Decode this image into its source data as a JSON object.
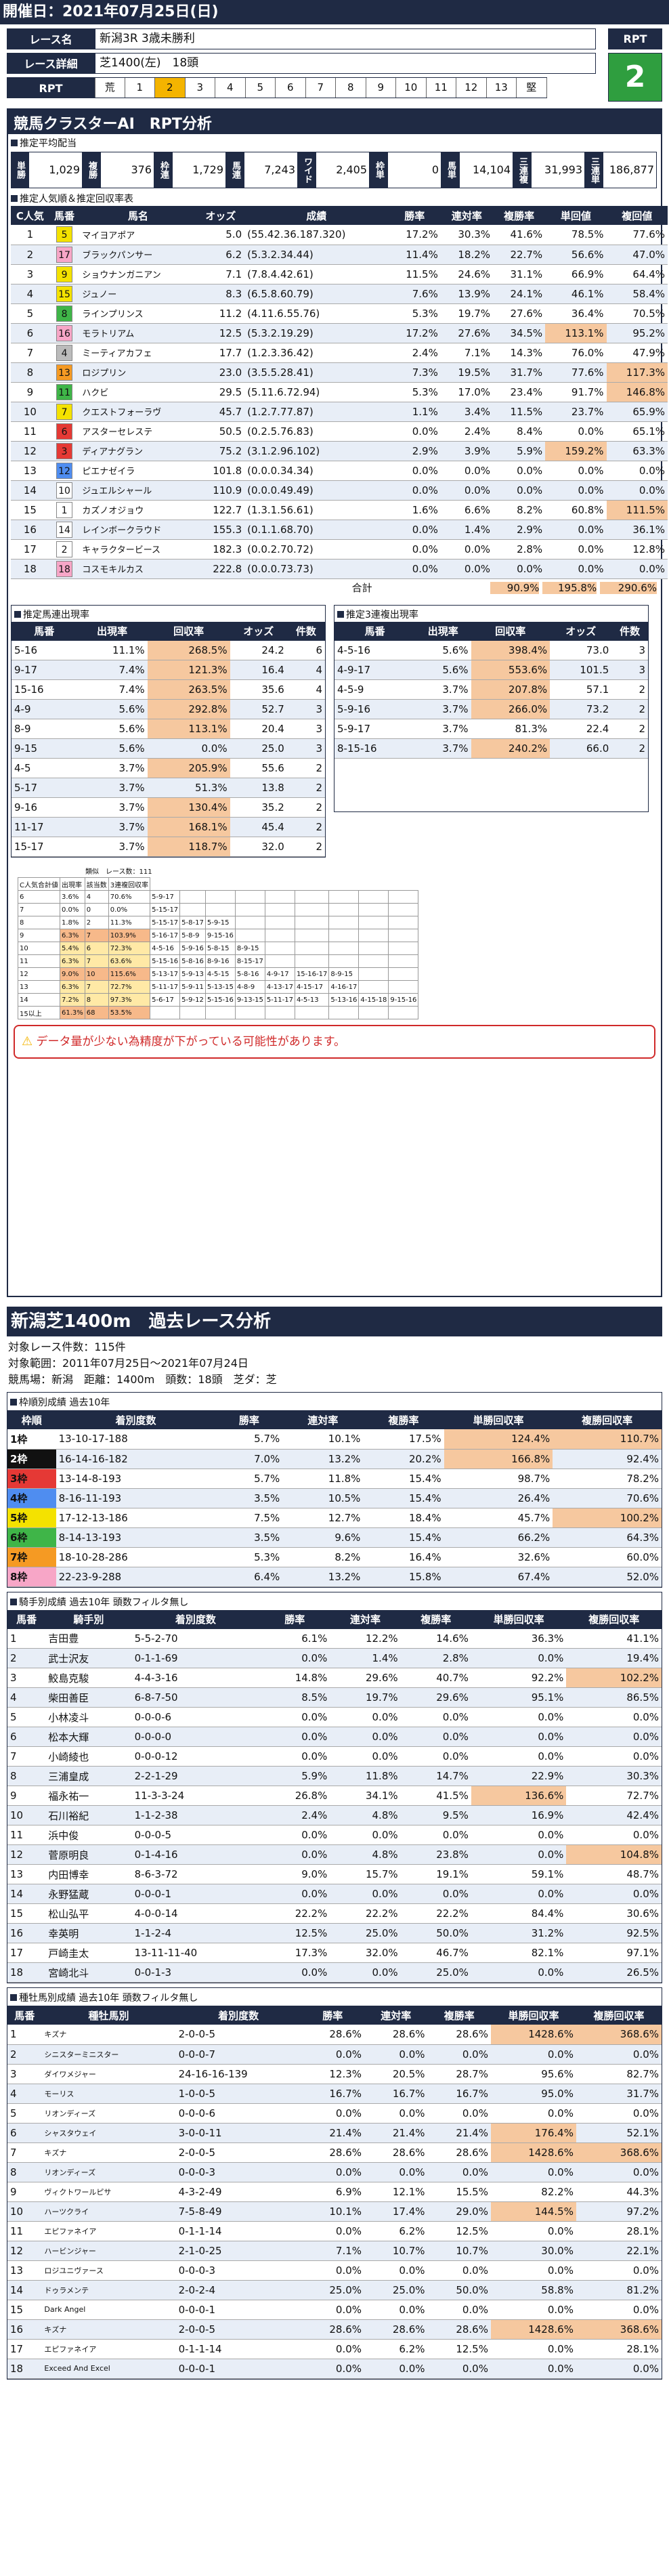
{
  "header": {
    "date": "開催日：2021年07月25日(日)"
  },
  "race": {
    "name_label": "レース名",
    "name": "新潟3R 3歳未勝利",
    "detail_label": "レース詳細",
    "detail": "芝1400(左)　18頭",
    "rpt_label": "RPT",
    "rpt_cells": [
      "荒",
      "1",
      "2",
      "3",
      "4",
      "5",
      "6",
      "7",
      "8",
      "9",
      "10",
      "11",
      "12",
      "13",
      "堅"
    ],
    "rpt_selected": "2",
    "rpt_box_label": "RPT",
    "rpt_value": "2"
  },
  "ai": {
    "title": "競馬クラスターAI　RPT分析",
    "payout_title": "推定平均配当",
    "payouts": [
      {
        "label": "単勝",
        "value": "1,029"
      },
      {
        "label": "複勝",
        "value": "376"
      },
      {
        "label": "枠連",
        "value": "1,729"
      },
      {
        "label": "馬連",
        "value": "7,243"
      },
      {
        "label": "ワイド",
        "value": "2,405"
      },
      {
        "label": "枠単",
        "value": "0"
      },
      {
        "label": "馬単",
        "value": "14,104"
      },
      {
        "label": "三連複",
        "value": "31,993"
      },
      {
        "label": "三連単",
        "value": "186,877"
      }
    ],
    "pop_title": "推定人気順＆推定回収率表",
    "pop_headers": [
      "C人気",
      "馬番",
      "馬名",
      "オッズ",
      "成績",
      "勝率",
      "連対率",
      "複勝率",
      "単回値",
      "複回値"
    ],
    "pop_rows": [
      [
        "1",
        "5",
        "マイヨアポア",
        "5.0",
        "(55.42.36.187.320)",
        "17.2%",
        "30.3%",
        "41.6%",
        "78.5%",
        "77.6%"
      ],
      [
        "2",
        "17",
        "ブラックパンサー",
        "6.2",
        "(5.3.2.34.44)",
        "11.4%",
        "18.2%",
        "22.7%",
        "56.6%",
        "47.0%"
      ],
      [
        "3",
        "9",
        "ショウナンガニアン",
        "7.1",
        "(7.8.4.42.61)",
        "11.5%",
        "24.6%",
        "31.1%",
        "66.9%",
        "64.4%"
      ],
      [
        "4",
        "15",
        "ジュノー",
        "8.3",
        "(6.5.8.60.79)",
        "7.6%",
        "13.9%",
        "24.1%",
        "46.1%",
        "58.4%"
      ],
      [
        "5",
        "8",
        "ラインプリンス",
        "11.2",
        "(4.11.6.55.76)",
        "5.3%",
        "19.7%",
        "27.6%",
        "36.4%",
        "70.5%"
      ],
      [
        "6",
        "16",
        "モラトリアム",
        "12.5",
        "(5.3.2.19.29)",
        "17.2%",
        "27.6%",
        "34.5%",
        "113.1%",
        "95.2%"
      ],
      [
        "7",
        "4",
        "ミーティアカフェ",
        "17.7",
        "(1.2.3.36.42)",
        "2.4%",
        "7.1%",
        "14.3%",
        "76.0%",
        "47.9%"
      ],
      [
        "8",
        "13",
        "ロジプリン",
        "23.0",
        "(3.5.5.28.41)",
        "7.3%",
        "19.5%",
        "31.7%",
        "77.6%",
        "117.3%"
      ],
      [
        "9",
        "11",
        "ハクビ",
        "29.5",
        "(5.11.6.72.94)",
        "5.3%",
        "17.0%",
        "23.4%",
        "91.7%",
        "146.8%"
      ],
      [
        "10",
        "7",
        "クエストフォーラヴ",
        "45.7",
        "(1.2.7.77.87)",
        "1.1%",
        "3.4%",
        "11.5%",
        "23.7%",
        "65.9%"
      ],
      [
        "11",
        "6",
        "アスターセレステ",
        "50.5",
        "(0.2.5.76.83)",
        "0.0%",
        "2.4%",
        "8.4%",
        "0.0%",
        "65.1%"
      ],
      [
        "12",
        "3",
        "ディアナグラン",
        "75.2",
        "(3.1.2.96.102)",
        "2.9%",
        "3.9%",
        "5.9%",
        "159.2%",
        "63.3%"
      ],
      [
        "13",
        "12",
        "ピエナゼイラ",
        "101.8",
        "(0.0.0.34.34)",
        "0.0%",
        "0.0%",
        "0.0%",
        "0.0%",
        "0.0%"
      ],
      [
        "14",
        "10",
        "ジュエルシャール",
        "110.9",
        "(0.0.0.49.49)",
        "0.0%",
        "0.0%",
        "0.0%",
        "0.0%",
        "0.0%"
      ],
      [
        "15",
        "1",
        "カズノオジョウ",
        "122.7",
        "(1.3.1.56.61)",
        "1.6%",
        "6.6%",
        "8.2%",
        "60.8%",
        "111.5%"
      ],
      [
        "16",
        "14",
        "レインボークラウド",
        "155.3",
        "(0.1.1.68.70)",
        "0.0%",
        "1.4%",
        "2.9%",
        "0.0%",
        "36.1%"
      ],
      [
        "17",
        "2",
        "キャラクタービース",
        "182.3",
        "(0.0.2.70.72)",
        "0.0%",
        "0.0%",
        "2.8%",
        "0.0%",
        "12.8%"
      ],
      [
        "18",
        "18",
        "コスモキルカス",
        "222.8",
        "(0.0.0.73.73)",
        "0.0%",
        "0.0%",
        "0.0%",
        "0.0%",
        "0.0%"
      ]
    ],
    "pop_total": {
      "label": "合計",
      "v1": "90.9%",
      "v2": "195.8%",
      "v3": "290.6%"
    },
    "umaren_title": "推定馬連出現率",
    "umaren_headers": [
      "馬番",
      "出現率",
      "回収率",
      "オッズ",
      "件数"
    ],
    "umaren_rows": [
      [
        "5-16",
        "11.1%",
        "268.5%",
        "24.2",
        "6"
      ],
      [
        "9-17",
        "7.4%",
        "121.3%",
        "16.4",
        "4"
      ],
      [
        "15-16",
        "7.4%",
        "263.5%",
        "35.6",
        "4"
      ],
      [
        "4-9",
        "5.6%",
        "292.8%",
        "52.7",
        "3"
      ],
      [
        "8-9",
        "5.6%",
        "113.1%",
        "20.4",
        "3"
      ],
      [
        "9-15",
        "5.6%",
        "0.0%",
        "25.0",
        "3"
      ],
      [
        "4-5",
        "3.7%",
        "205.9%",
        "55.6",
        "2"
      ],
      [
        "5-17",
        "3.7%",
        "51.3%",
        "13.8",
        "2"
      ],
      [
        "9-16",
        "3.7%",
        "130.4%",
        "35.2",
        "2"
      ],
      [
        "11-17",
        "3.7%",
        "168.1%",
        "45.4",
        "2"
      ],
      [
        "15-17",
        "3.7%",
        "118.7%",
        "32.0",
        "2"
      ]
    ],
    "sanren_title": "推定3連複出現率",
    "sanren_headers": [
      "馬番",
      "出現率",
      "回収率",
      "オッズ",
      "件数"
    ],
    "sanren_rows": [
      [
        "4-5-16",
        "5.6%",
        "398.4%",
        "73.0",
        "3"
      ],
      [
        "4-9-17",
        "5.6%",
        "553.6%",
        "101.5",
        "3"
      ],
      [
        "4-5-9",
        "3.7%",
        "207.8%",
        "57.1",
        "2"
      ],
      [
        "5-9-16",
        "3.7%",
        "266.0%",
        "73.2",
        "2"
      ],
      [
        "5-9-17",
        "3.7%",
        "81.3%",
        "22.4",
        "2"
      ],
      [
        "8-15-16",
        "3.7%",
        "240.2%",
        "66.0",
        "2"
      ]
    ],
    "mini_caption": "類似　レース数：111",
    "mini_headers": [
      "C人気合計値",
      "出現率",
      "該当数",
      "3連複回収率"
    ],
    "mini_rows": [
      [
        "6",
        "3.6%",
        "4",
        "70.6%",
        "5-9-17",
        "",
        "",
        "",
        "",
        "",
        "",
        "",
        ""
      ],
      [
        "7",
        "0.0%",
        "0",
        "0.0%",
        "5-15-17",
        "",
        "",
        "",
        "",
        "",
        "",
        "",
        ""
      ],
      [
        "8",
        "1.8%",
        "2",
        "11.3%",
        "5-15-17",
        "5-8-17",
        "5-9-15",
        "",
        "",
        "",
        "",
        "",
        ""
      ],
      [
        "9",
        "6.3%",
        "7",
        "103.9%",
        "5-16-17",
        "5-8-9",
        "9-15-16",
        "",
        "",
        "",
        "",
        "",
        ""
      ],
      [
        "10",
        "5.4%",
        "6",
        "72.3%",
        "4-5-16",
        "5-9-16",
        "5-8-15",
        "8-9-15",
        "",
        "",
        "",
        "",
        ""
      ],
      [
        "11",
        "6.3%",
        "7",
        "63.6%",
        "5-15-16",
        "5-8-16",
        "8-9-16",
        "8-15-17",
        "",
        "",
        "",
        "",
        ""
      ],
      [
        "12",
        "9.0%",
        "10",
        "115.6%",
        "5-13-17",
        "5-9-13",
        "4-5-15",
        "5-8-16",
        "4-9-17",
        "15-16-17",
        "8-9-15",
        "",
        ""
      ],
      [
        "13",
        "6.3%",
        "7",
        "72.7%",
        "5-11-17",
        "5-9-11",
        "5-13-15",
        "4-8-9",
        "4-13-17",
        "4-15-17",
        "4-16-17",
        "",
        ""
      ],
      [
        "14",
        "7.2%",
        "8",
        "97.3%",
        "5-6-17",
        "5-9-12",
        "5-15-16",
        "9-13-15",
        "5-11-17",
        "4-5-13",
        "5-13-16",
        "4-15-18",
        "9-15-16"
      ],
      [
        "15以上",
        "61.3%",
        "68",
        "53.5%",
        "",
        "",
        "",
        "",
        "",
        "",
        "",
        "",
        ""
      ]
    ],
    "warning": "データ量が少ない為精度が下がっている可能性があります。"
  },
  "analysis": {
    "title": "新潟芝1400m　過去レース分析",
    "info": [
      "対象レース件数：115件",
      "対象範囲：2011年07月25日～2021年07月24日",
      "競馬場：新潟　距離：1400m　頭数：18頭　芝ダ：芝"
    ],
    "waku_title": "枠順別成績 過去10年",
    "waku_headers": [
      "枠順",
      "着別度数",
      "勝率",
      "連対率",
      "複勝率",
      "単勝回収率",
      "複勝回収率"
    ],
    "waku_rows": [
      [
        "1枠",
        "13-10-17-188",
        "5.7%",
        "10.1%",
        "17.5%",
        "124.4%",
        "110.7%"
      ],
      [
        "2枠",
        "16-14-16-182",
        "7.0%",
        "13.2%",
        "20.2%",
        "166.8%",
        "92.4%"
      ],
      [
        "3枠",
        "13-14-8-193",
        "5.7%",
        "11.8%",
        "15.4%",
        "98.7%",
        "78.2%"
      ],
      [
        "4枠",
        "8-16-11-193",
        "3.5%",
        "10.5%",
        "15.4%",
        "26.4%",
        "70.6%"
      ],
      [
        "5枠",
        "17-12-13-186",
        "7.5%",
        "12.7%",
        "18.4%",
        "45.7%",
        "100.2%"
      ],
      [
        "6枠",
        "8-14-13-193",
        "3.5%",
        "9.6%",
        "15.4%",
        "66.2%",
        "64.3%"
      ],
      [
        "7枠",
        "18-10-28-286",
        "5.3%",
        "8.2%",
        "16.4%",
        "32.6%",
        "60.0%"
      ],
      [
        "8枠",
        "22-23-9-288",
        "6.4%",
        "13.2%",
        "15.8%",
        "67.4%",
        "52.0%"
      ]
    ],
    "waku_colors": [
      "#ffffff",
      "#111111",
      "#e53935",
      "#4f8df0",
      "#f4e200",
      "#3fb548",
      "#f59a23",
      "#f7a6c7"
    ],
    "jockey_title": "騎手別成績 過去10年 頭数フィルタ無し",
    "jockey_headers": [
      "馬番",
      "騎手別",
      "着別度数",
      "勝率",
      "連対率",
      "複勝率",
      "単勝回収率",
      "複勝回収率"
    ],
    "jockey_rows": [
      [
        "1",
        "吉田豊",
        "5-5-2-70",
        "6.1%",
        "12.2%",
        "14.6%",
        "36.3%",
        "41.1%"
      ],
      [
        "2",
        "武士沢友",
        "0-1-1-69",
        "0.0%",
        "1.4%",
        "2.8%",
        "0.0%",
        "19.4%"
      ],
      [
        "3",
        "鮫島克駿",
        "4-4-3-16",
        "14.8%",
        "29.6%",
        "40.7%",
        "92.2%",
        "102.2%"
      ],
      [
        "4",
        "柴田善臣",
        "6-8-7-50",
        "8.5%",
        "19.7%",
        "29.6%",
        "95.1%",
        "86.5%"
      ],
      [
        "5",
        "小林凌斗",
        "0-0-0-6",
        "0.0%",
        "0.0%",
        "0.0%",
        "0.0%",
        "0.0%"
      ],
      [
        "6",
        "松本大輝",
        "0-0-0-0",
        "0.0%",
        "0.0%",
        "0.0%",
        "0.0%",
        "0.0%"
      ],
      [
        "7",
        "小崎綾也",
        "0-0-0-12",
        "0.0%",
        "0.0%",
        "0.0%",
        "0.0%",
        "0.0%"
      ],
      [
        "8",
        "三浦皇成",
        "2-2-1-29",
        "5.9%",
        "11.8%",
        "14.7%",
        "22.9%",
        "30.3%"
      ],
      [
        "9",
        "福永祐一",
        "11-3-3-24",
        "26.8%",
        "34.1%",
        "41.5%",
        "136.6%",
        "72.7%"
      ],
      [
        "10",
        "石川裕紀",
        "1-1-2-38",
        "2.4%",
        "4.8%",
        "9.5%",
        "16.9%",
        "42.4%"
      ],
      [
        "11",
        "浜中俊",
        "0-0-0-5",
        "0.0%",
        "0.0%",
        "0.0%",
        "0.0%",
        "0.0%"
      ],
      [
        "12",
        "菅原明良",
        "0-1-4-16",
        "0.0%",
        "4.8%",
        "23.8%",
        "0.0%",
        "104.8%"
      ],
      [
        "13",
        "内田博幸",
        "8-6-3-72",
        "9.0%",
        "15.7%",
        "19.1%",
        "59.1%",
        "48.7%"
      ],
      [
        "14",
        "永野猛蔵",
        "0-0-0-1",
        "0.0%",
        "0.0%",
        "0.0%",
        "0.0%",
        "0.0%"
      ],
      [
        "15",
        "松山弘平",
        "4-0-0-14",
        "22.2%",
        "22.2%",
        "22.2%",
        "84.4%",
        "30.6%"
      ],
      [
        "16",
        "幸英明",
        "1-1-2-4",
        "12.5%",
        "25.0%",
        "50.0%",
        "31.2%",
        "92.5%"
      ],
      [
        "17",
        "戸崎圭太",
        "13-11-11-40",
        "17.3%",
        "32.0%",
        "46.7%",
        "82.1%",
        "97.1%"
      ],
      [
        "18",
        "宮崎北斗",
        "0-0-1-3",
        "0.0%",
        "0.0%",
        "25.0%",
        "0.0%",
        "26.5%"
      ]
    ],
    "sire_title": "種牡馬別成績 過去10年 頭数フィルタ無し",
    "sire_headers": [
      "馬番",
      "種牡馬別",
      "着別度数",
      "勝率",
      "連対率",
      "複勝率",
      "単勝回収率",
      "複勝回収率"
    ],
    "sire_rows": [
      [
        "1",
        "キズナ",
        "2-0-0-5",
        "28.6%",
        "28.6%",
        "28.6%",
        "1428.6%",
        "368.6%"
      ],
      [
        "2",
        "シニスターミニスター",
        "0-0-0-7",
        "0.0%",
        "0.0%",
        "0.0%",
        "0.0%",
        "0.0%"
      ],
      [
        "3",
        "ダイワメジャー",
        "24-16-16-139",
        "12.3%",
        "20.5%",
        "28.7%",
        "95.6%",
        "82.7%"
      ],
      [
        "4",
        "モーリス",
        "1-0-0-5",
        "16.7%",
        "16.7%",
        "16.7%",
        "95.0%",
        "31.7%"
      ],
      [
        "5",
        "リオンディーズ",
        "0-0-0-6",
        "0.0%",
        "0.0%",
        "0.0%",
        "0.0%",
        "0.0%"
      ],
      [
        "6",
        "シャスタウェイ",
        "3-0-0-11",
        "21.4%",
        "21.4%",
        "21.4%",
        "176.4%",
        "52.1%"
      ],
      [
        "7",
        "キズナ",
        "2-0-0-5",
        "28.6%",
        "28.6%",
        "28.6%",
        "1428.6%",
        "368.6%"
      ],
      [
        "8",
        "リオンディーズ",
        "0-0-0-3",
        "0.0%",
        "0.0%",
        "0.0%",
        "0.0%",
        "0.0%"
      ],
      [
        "9",
        "ヴィクトワールピサ",
        "4-3-2-49",
        "6.9%",
        "12.1%",
        "15.5%",
        "82.2%",
        "44.3%"
      ],
      [
        "10",
        "ハーツクライ",
        "7-5-8-49",
        "10.1%",
        "17.4%",
        "29.0%",
        "144.5%",
        "97.2%"
      ],
      [
        "11",
        "エピファネイア",
        "0-1-1-14",
        "0.0%",
        "6.2%",
        "12.5%",
        "0.0%",
        "28.1%"
      ],
      [
        "12",
        "ハービンジャー",
        "2-1-0-25",
        "7.1%",
        "10.7%",
        "10.7%",
        "30.0%",
        "22.1%"
      ],
      [
        "13",
        "ロジユニヴァース",
        "0-0-0-3",
        "0.0%",
        "0.0%",
        "0.0%",
        "0.0%",
        "0.0%"
      ],
      [
        "14",
        "ドゥラメンテ",
        "2-0-2-4",
        "25.0%",
        "25.0%",
        "50.0%",
        "58.8%",
        "81.2%"
      ],
      [
        "15",
        "Dark Angel",
        "0-0-0-1",
        "0.0%",
        "0.0%",
        "0.0%",
        "0.0%",
        "0.0%"
      ],
      [
        "16",
        "キズナ",
        "2-0-0-5",
        "28.6%",
        "28.6%",
        "28.6%",
        "1428.6%",
        "368.6%"
      ],
      [
        "17",
        "エピファネイア",
        "0-1-1-14",
        "0.0%",
        "6.2%",
        "12.5%",
        "0.0%",
        "28.1%"
      ],
      [
        "18",
        "Exceed And Excel",
        "0-0-0-1",
        "0.0%",
        "0.0%",
        "0.0%",
        "0.0%",
        "0.0%"
      ]
    ]
  }
}
